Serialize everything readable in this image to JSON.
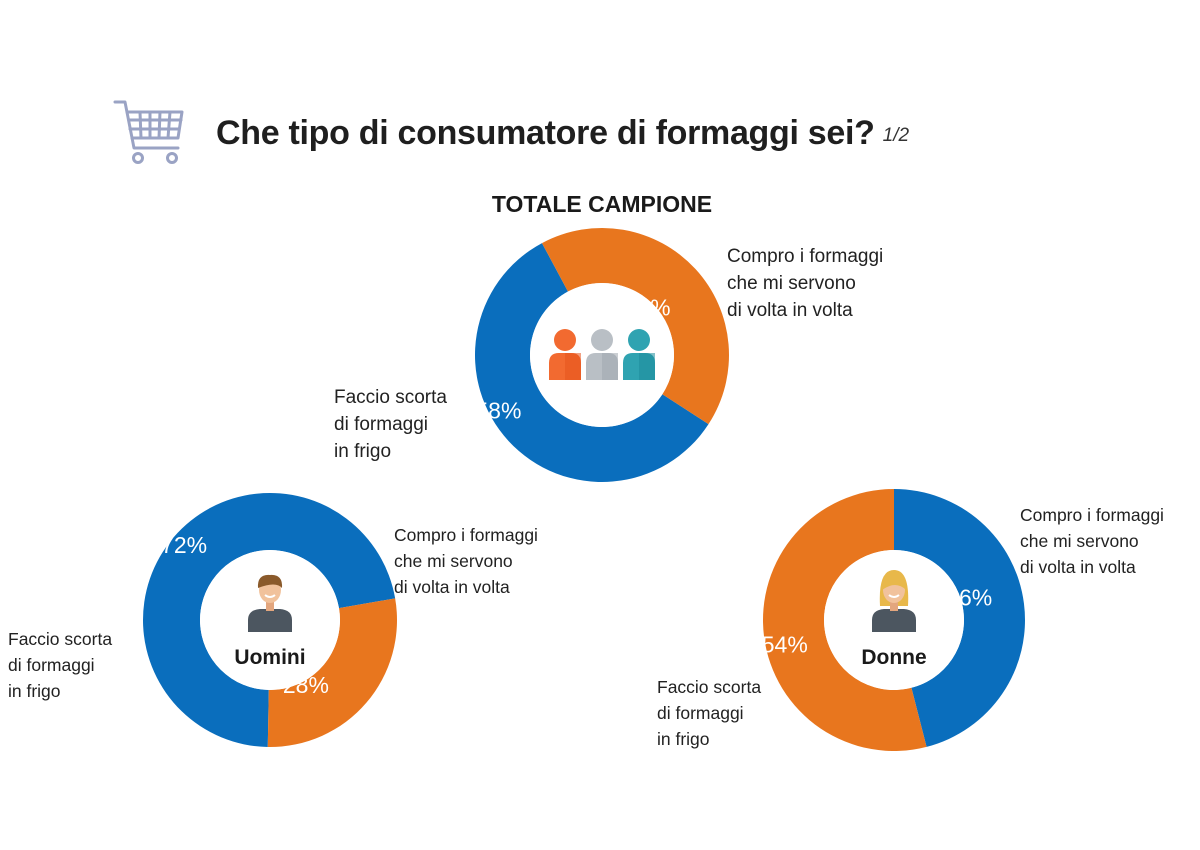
{
  "header": {
    "title": "Che tipo di consumatore di formaggi sei?",
    "page_indicator": "1/2"
  },
  "colors": {
    "blue": "#0a6ebd",
    "orange": "#e8761e",
    "cart": "#9aa3c4"
  },
  "chart_data": [
    {
      "type": "pie",
      "title": "TOTALE CAMPIONE",
      "center_icon": "group-of-people-icon",
      "categories": [
        "Compro i formaggi che mi servono di volta in volta",
        "Faccio scorta di formaggi in frigo"
      ],
      "values": [
        58,
        42
      ],
      "labels": [
        "58%",
        "42%"
      ],
      "legend": [
        [
          "Compro i formaggi",
          "che mi servono",
          "di volta in volta"
        ],
        [
          "Faccio scorta",
          "di formaggi",
          "in frigo"
        ]
      ]
    },
    {
      "type": "pie",
      "center_label": "Uomini",
      "center_icon": "man-avatar-icon",
      "categories": [
        "Compro i formaggi che mi servono di volta in volta",
        "Faccio scorta di formaggi in frigo"
      ],
      "values": [
        72,
        28
      ],
      "labels": [
        "72%",
        "28%"
      ],
      "legend": [
        [
          "Compro i formaggi",
          "che mi servono",
          "di volta in volta"
        ],
        [
          "Faccio scorta",
          "di formaggi",
          "in frigo"
        ]
      ]
    },
    {
      "type": "pie",
      "center_label": "Donne",
      "center_icon": "woman-avatar-icon",
      "categories": [
        "Compro i formaggi che mi servono di volta in volta",
        "Faccio scorta di formaggi in frigo"
      ],
      "values": [
        46,
        54
      ],
      "labels": [
        "46%",
        "54%"
      ],
      "legend": [
        [
          "Compro i formaggi",
          "che mi servono",
          "di volta in volta"
        ],
        [
          "Faccio scorta",
          "di formaggi",
          "in frigo"
        ]
      ]
    }
  ]
}
